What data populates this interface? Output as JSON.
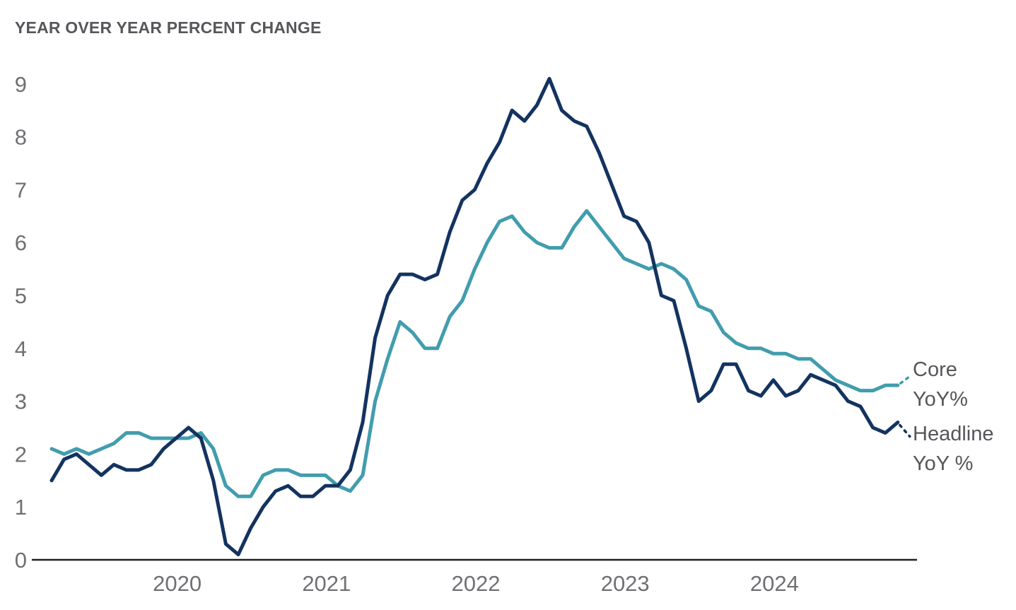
{
  "chart_data": {
    "type": "line",
    "title": "YEAR OVER YEAR PERCENT CHANGE",
    "x_start": "2019-02",
    "x_end": "2024-10",
    "frequency": "monthly",
    "grid": false,
    "ylim": [
      0,
      9
    ],
    "y_ticks": [
      0,
      1,
      2,
      3,
      4,
      5,
      6,
      7,
      8,
      9
    ],
    "x_tick_labels": [
      "2020",
      "2021",
      "2022",
      "2023",
      "2024"
    ],
    "x_tick_indices": [
      11,
      23,
      35,
      47,
      59
    ],
    "legend_position": "right-of-line-ends",
    "series": [
      {
        "name": "Headline YoY %",
        "legend_lines": [
          "Headline",
          "YoY %"
        ],
        "color": "#133360",
        "values": [
          1.5,
          1.9,
          2.0,
          1.8,
          1.6,
          1.8,
          1.7,
          1.7,
          1.8,
          2.1,
          2.3,
          2.5,
          2.3,
          1.5,
          0.3,
          0.1,
          0.6,
          1.0,
          1.3,
          1.4,
          1.2,
          1.2,
          1.4,
          1.4,
          1.7,
          2.6,
          4.2,
          5.0,
          5.4,
          5.4,
          5.3,
          5.4,
          6.2,
          6.8,
          7.0,
          7.5,
          7.9,
          8.5,
          8.3,
          8.6,
          9.1,
          8.5,
          8.3,
          8.2,
          7.7,
          7.1,
          6.5,
          6.4,
          6.0,
          5.0,
          4.9,
          4.0,
          3.0,
          3.2,
          3.7,
          3.7,
          3.2,
          3.1,
          3.4,
          3.1,
          3.2,
          3.5,
          3.4,
          3.3,
          3.0,
          2.9,
          2.5,
          2.4,
          2.6
        ]
      },
      {
        "name": "Core YoY%",
        "legend_lines": [
          "Core",
          "YoY%"
        ],
        "color": "#419DAD",
        "values": [
          2.1,
          2.0,
          2.1,
          2.0,
          2.1,
          2.2,
          2.4,
          2.4,
          2.3,
          2.3,
          2.3,
          2.3,
          2.4,
          2.1,
          1.4,
          1.2,
          1.2,
          1.6,
          1.7,
          1.7,
          1.6,
          1.6,
          1.6,
          1.4,
          1.3,
          1.6,
          3.0,
          3.8,
          4.5,
          4.3,
          4.0,
          4.0,
          4.6,
          4.9,
          5.5,
          6.0,
          6.4,
          6.5,
          6.2,
          6.0,
          5.9,
          5.9,
          6.3,
          6.6,
          6.3,
          6.0,
          5.7,
          5.6,
          5.5,
          5.6,
          5.5,
          5.3,
          4.8,
          4.7,
          4.3,
          4.1,
          4.0,
          4.0,
          3.9,
          3.9,
          3.8,
          3.8,
          3.6,
          3.4,
          3.3,
          3.2,
          3.2,
          3.3,
          3.3
        ]
      }
    ],
    "colors": {
      "axis_line": "#1F1F1F",
      "axis_text": "#6F7073",
      "title_text": "#56575A",
      "legend_text": "#54565A"
    }
  }
}
